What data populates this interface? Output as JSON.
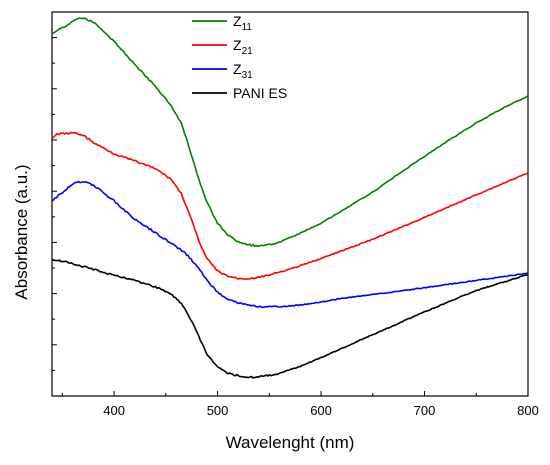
{
  "chart_data": {
    "type": "line",
    "title": "",
    "xlabel": "Wavelenght (nm)",
    "ylabel": "Absorbance (a.u.)",
    "xlim": [
      340,
      800
    ],
    "ylim": [
      0,
      1
    ],
    "xticks": [
      400,
      500,
      600,
      700,
      800
    ],
    "y_tick_labels_shown": false,
    "grid": false,
    "legend_position": "top-left",
    "series": [
      {
        "name": "Z11",
        "label_main": "Z",
        "label_sub": "11",
        "color": "#008000",
        "x": [
          340,
          350,
          357,
          362,
          370,
          380,
          400,
          420,
          440,
          455,
          465,
          470,
          475,
          480,
          485,
          490,
          500,
          510,
          520,
          530,
          540,
          550,
          560,
          580,
          600,
          620,
          650,
          680,
          700,
          720,
          750,
          780,
          800
        ],
        "y": [
          0.944,
          0.96,
          0.968,
          0.98,
          0.985,
          0.973,
          0.924,
          0.863,
          0.806,
          0.757,
          0.709,
          0.669,
          0.624,
          0.58,
          0.539,
          0.503,
          0.45,
          0.419,
          0.401,
          0.394,
          0.39,
          0.394,
          0.401,
          0.424,
          0.45,
          0.482,
          0.531,
          0.588,
          0.624,
          0.66,
          0.711,
          0.756,
          0.781
        ]
      },
      {
        "name": "Z21",
        "label_main": "Z",
        "label_sub": "21",
        "color": "#ff0000",
        "x": [
          340,
          345,
          360,
          370,
          380,
          400,
          420,
          440,
          455,
          465,
          470,
          475,
          480,
          485,
          490,
          500,
          510,
          520,
          530,
          540,
          560,
          580,
          600,
          650,
          700,
          750,
          800
        ],
        "y": [
          0.671,
          0.682,
          0.685,
          0.68,
          0.66,
          0.631,
          0.612,
          0.592,
          0.565,
          0.527,
          0.493,
          0.457,
          0.419,
          0.383,
          0.357,
          0.325,
          0.312,
          0.306,
          0.306,
          0.309,
          0.322,
          0.339,
          0.358,
          0.408,
          0.465,
          0.524,
          0.581
        ]
      },
      {
        "name": "Z31",
        "label_main": "Z",
        "label_sub": "31",
        "color": "#0000ff",
        "x": [
          340,
          350,
          360,
          370,
          380,
          400,
          420,
          440,
          460,
          470,
          480,
          490,
          500,
          510,
          520,
          540,
          560,
          580,
          600,
          620,
          650,
          700,
          750,
          780,
          800
        ],
        "y": [
          0.508,
          0.53,
          0.553,
          0.559,
          0.549,
          0.508,
          0.46,
          0.425,
          0.389,
          0.369,
          0.339,
          0.301,
          0.27,
          0.253,
          0.242,
          0.232,
          0.232,
          0.237,
          0.245,
          0.254,
          0.264,
          0.282,
          0.301,
          0.312,
          0.32
        ]
      },
      {
        "name": "PANI ES",
        "label_main": "PANI ES",
        "label_sub": "",
        "color": "#000000",
        "x": [
          340,
          350,
          360,
          380,
          400,
          420,
          440,
          455,
          465,
          470,
          475,
          480,
          485,
          490,
          500,
          510,
          520,
          530,
          540,
          550,
          560,
          580,
          600,
          650,
          700,
          750,
          800
        ],
        "y": [
          0.355,
          0.351,
          0.345,
          0.33,
          0.314,
          0.301,
          0.284,
          0.266,
          0.24,
          0.22,
          0.195,
          0.166,
          0.136,
          0.108,
          0.075,
          0.059,
          0.053,
          0.048,
          0.05,
          0.054,
          0.059,
          0.077,
          0.1,
          0.16,
          0.219,
          0.275,
          0.316
        ]
      }
    ]
  }
}
